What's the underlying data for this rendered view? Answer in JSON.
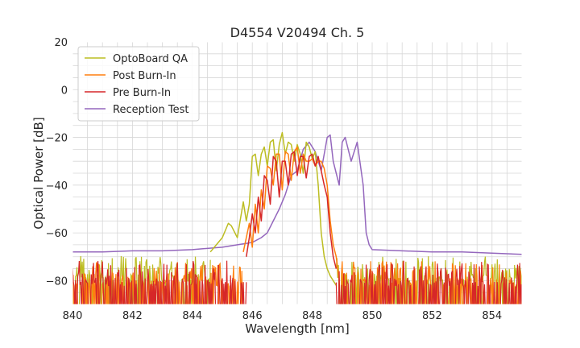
{
  "chart_data": {
    "type": "line",
    "title": "D4554 V20494 Ch. 5",
    "xlabel": "Wavelength [nm]",
    "ylabel": "Optical Power [dB]",
    "xlim": [
      840,
      855
    ],
    "ylim": [
      -90,
      20
    ],
    "x_ticks": [
      840,
      842,
      844,
      846,
      848,
      850,
      852,
      854
    ],
    "x_tick_labels": [
      "840",
      "842",
      "844",
      "846",
      "848",
      "850",
      "852",
      "854"
    ],
    "y_ticks": [
      -80,
      -60,
      -40,
      -20,
      0,
      20
    ],
    "y_tick_labels": [
      "−80",
      "−60",
      "−40",
      "−20",
      "0",
      "20"
    ],
    "grid": true,
    "legend_position": "top-left",
    "series": [
      {
        "name": "OptoBoard QA",
        "color": "#bcbd22",
        "x": [
          844.6,
          844.8,
          845.0,
          845.2,
          845.3,
          845.5,
          845.7,
          845.8,
          845.9,
          846.0,
          846.1,
          846.2,
          846.3,
          846.4,
          846.5,
          846.6,
          846.7,
          846.8,
          846.9,
          847.0,
          847.1,
          847.2,
          847.3,
          847.4,
          847.5,
          847.6,
          847.7,
          847.8,
          847.9,
          848.0,
          848.1,
          848.2,
          848.3,
          848.4,
          848.5,
          848.6,
          848.7,
          848.8
        ],
        "y": [
          -68,
          -65,
          -62,
          -56,
          -57,
          -62,
          -47,
          -55,
          -48,
          -28,
          -27,
          -36,
          -27,
          -24,
          -32,
          -22,
          -21,
          -34,
          -23,
          -18,
          -27,
          -22,
          -23,
          -30,
          -23,
          -27,
          -35,
          -22,
          -24,
          -29,
          -26,
          -40,
          -60,
          -70,
          -75,
          -78,
          -80,
          -82
        ],
        "noise_floor": {
          "x_ranges": [
            [
              840,
              844.6
            ],
            [
              848.8,
              855
            ]
          ],
          "level": -78,
          "spread": 12
        }
      },
      {
        "name": "Post Burn-In",
        "color": "#ff7f0e",
        "x": [
          845.7,
          845.8,
          845.9,
          846.0,
          846.1,
          846.2,
          846.3,
          846.4,
          846.5,
          846.6,
          846.7,
          846.8,
          846.9,
          847.0,
          847.1,
          847.2,
          847.3,
          847.4,
          847.5,
          847.6,
          847.7,
          847.8,
          847.9,
          848.0,
          848.1,
          848.2,
          848.3,
          848.4,
          848.5,
          848.6,
          848.7,
          848.8,
          848.9
        ],
        "y": [
          -68,
          -62,
          -56,
          -66,
          -48,
          -60,
          -42,
          -50,
          -32,
          -33,
          -40,
          -27,
          -27,
          -42,
          -26,
          -27,
          -38,
          -26,
          -24,
          -35,
          -27,
          -30,
          -30,
          -29,
          -32,
          -30,
          -30,
          -33,
          -40,
          -55,
          -65,
          -70,
          -80
        ],
        "noise_floor": {
          "x_ranges": [
            [
              840,
              845.7
            ],
            [
              848.9,
              855
            ]
          ],
          "level": -80,
          "spread": 12
        }
      },
      {
        "name": "Pre Burn-In",
        "color": "#d62728",
        "x": [
          845.8,
          845.9,
          846.0,
          846.1,
          846.2,
          846.3,
          846.4,
          846.5,
          846.6,
          846.7,
          846.8,
          846.9,
          847.0,
          847.1,
          847.2,
          847.3,
          847.4,
          847.5,
          847.6,
          847.7,
          847.8,
          847.9,
          848.0,
          848.1,
          848.2,
          848.3,
          848.4,
          848.5,
          848.6,
          848.7,
          848.8
        ],
        "y": [
          -70,
          -62,
          -52,
          -60,
          -45,
          -55,
          -36,
          -38,
          -48,
          -28,
          -30,
          -45,
          -30,
          -30,
          -40,
          -27,
          -26,
          -36,
          -28,
          -28,
          -37,
          -28,
          -27,
          -32,
          -28,
          -34,
          -40,
          -45,
          -60,
          -70,
          -75
        ],
        "noise_floor": {
          "x_ranges": [
            [
              840,
              845.8
            ],
            [
              848.8,
              855
            ]
          ],
          "level": -80,
          "spread": 12
        }
      },
      {
        "name": "Reception Test",
        "color": "#9467bd",
        "x": [
          840,
          841,
          842,
          843,
          844,
          845,
          845.5,
          846.0,
          846.3,
          846.5,
          846.7,
          846.9,
          847.1,
          847.3,
          847.5,
          847.7,
          847.9,
          848.1,
          848.3,
          848.5,
          848.6,
          848.7,
          848.9,
          849.0,
          849.1,
          849.3,
          849.5,
          849.7,
          849.8,
          849.9,
          850.0,
          851,
          852,
          853,
          854,
          855
        ],
        "y": [
          -68,
          -68,
          -67.5,
          -67.5,
          -67,
          -66,
          -65,
          -64,
          -62,
          -60,
          -55,
          -50,
          -44,
          -36,
          -34,
          -25,
          -22,
          -26,
          -34,
          -20,
          -19,
          -30,
          -40,
          -22,
          -20,
          -30,
          -22,
          -40,
          -60,
          -65,
          -67,
          -67.5,
          -68,
          -68,
          -68.5,
          -69
        ]
      }
    ]
  }
}
